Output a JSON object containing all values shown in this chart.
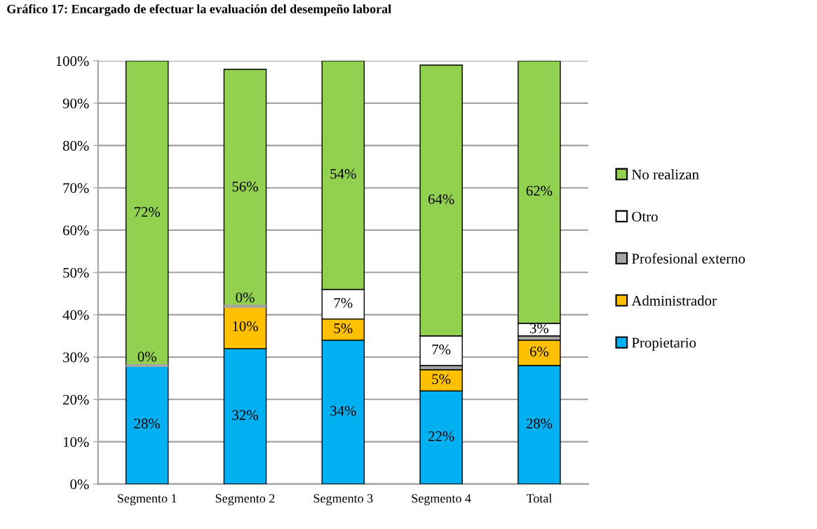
{
  "chart_data": {
    "type": "bar",
    "title": "Gráfico 17: Encargado de efectuar la evaluación del desempeño laboral",
    "categories": [
      "Segmento 1",
      "Segmento 2",
      "Segmento 3",
      "Segmento 4",
      "Total"
    ],
    "stacked": true,
    "series": [
      {
        "name": "Propietario",
        "color": "#00b0f0",
        "values": [
          28,
          32,
          34,
          22,
          28
        ],
        "value_labels": [
          "28%",
          "32%",
          "34%",
          "22%",
          "28%"
        ]
      },
      {
        "name": "Administrador",
        "color": "#ffc000",
        "values": [
          null,
          10,
          5,
          5,
          6
        ],
        "value_labels": [
          null,
          "10%",
          "5%",
          "5%",
          "6%"
        ]
      },
      {
        "name": "Profesional externo",
        "color": "#a6a6a6",
        "values": [
          0,
          0,
          null,
          1,
          1
        ],
        "value_labels": [
          "0%",
          "0%",
          null,
          null,
          null
        ]
      },
      {
        "name": "Otro",
        "color": "#ffffff",
        "values": [
          null,
          null,
          7,
          7,
          3
        ],
        "value_labels": [
          null,
          null,
          "7%",
          "7%",
          "3%"
        ]
      },
      {
        "name": "No realizan",
        "color": "#92d050",
        "values": [
          72,
          56,
          54,
          64,
          62
        ],
        "value_labels": [
          "72%",
          "56%",
          "54%",
          "64%",
          "62%"
        ]
      }
    ],
    "ylim": [
      0,
      100
    ],
    "yticks": [
      {
        "value": 0,
        "label": "0%"
      },
      {
        "value": 10,
        "label": "10%"
      },
      {
        "value": 20,
        "label": "20%"
      },
      {
        "value": 30,
        "label": "30%"
      },
      {
        "value": 40,
        "label": "40%"
      },
      {
        "value": 50,
        "label": "50%"
      },
      {
        "value": 60,
        "label": "60%"
      },
      {
        "value": 70,
        "label": "70%"
      },
      {
        "value": 80,
        "label": "80%"
      },
      {
        "value": 90,
        "label": "90%"
      },
      {
        "value": 100,
        "label": "100%"
      }
    ],
    "grid": "y",
    "legend": "right"
  }
}
